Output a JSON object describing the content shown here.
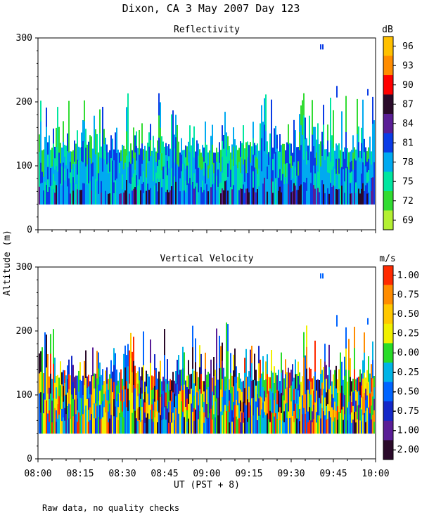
{
  "page": {
    "title": "Dixon, CA  3 May 2007  Day 123",
    "footer": "Raw data, no quality checks",
    "ylabel": "Altitude (m)",
    "xlabel": "UT  (PST + 8)"
  },
  "chart_data": [
    {
      "type": "heatmap",
      "title": "Reflectivity",
      "ylabel": "Altitude (m)",
      "xlabel": "UT  (PST + 8)",
      "ylim": [
        0,
        300
      ],
      "yticks": [
        "0",
        "100",
        "200",
        "300"
      ],
      "xticks": [
        "08:00",
        "08:15",
        "08:30",
        "08:45",
        "09:00",
        "09:15",
        "09:30",
        "09:45",
        "10:00"
      ],
      "colorbar": {
        "unit": "dB",
        "labels": [
          "96",
          "93",
          "90",
          "87",
          "84",
          "81",
          "78",
          "75",
          "72",
          "69"
        ],
        "colors": [
          "#ffc000",
          "#ff8c00",
          "#ff0000",
          "#2a0a2a",
          "#5a1e96",
          "#0a3ce6",
          "#00aaf0",
          "#00e6a0",
          "#32dc32",
          "#b4f032"
        ]
      },
      "data_floor_m": 40
    },
    {
      "type": "heatmap",
      "title": "Vertical Velocity",
      "ylabel": "Altitude (m)",
      "xlabel": "UT  (PST + 8)",
      "ylim": [
        0,
        300
      ],
      "yticks": [
        "0",
        "100",
        "200",
        "300"
      ],
      "xticks": [
        "08:00",
        "08:15",
        "08:30",
        "08:45",
        "09:00",
        "09:15",
        "09:30",
        "09:45",
        "10:00"
      ],
      "colorbar": {
        "unit": "m/s",
        "labels": [
          "1.00",
          "0.75",
          "0.50",
          "0.25",
          "0.00",
          "-0.25",
          "-0.50",
          "-0.75",
          "-1.00",
          "-2.00"
        ],
        "colors": [
          "#ff2a00",
          "#ff8c00",
          "#ffc800",
          "#f0f000",
          "#28dc28",
          "#00b4e6",
          "#0064ff",
          "#1428c8",
          "#5a1e96",
          "#2a0a2a"
        ]
      },
      "data_floor_m": 40
    }
  ]
}
